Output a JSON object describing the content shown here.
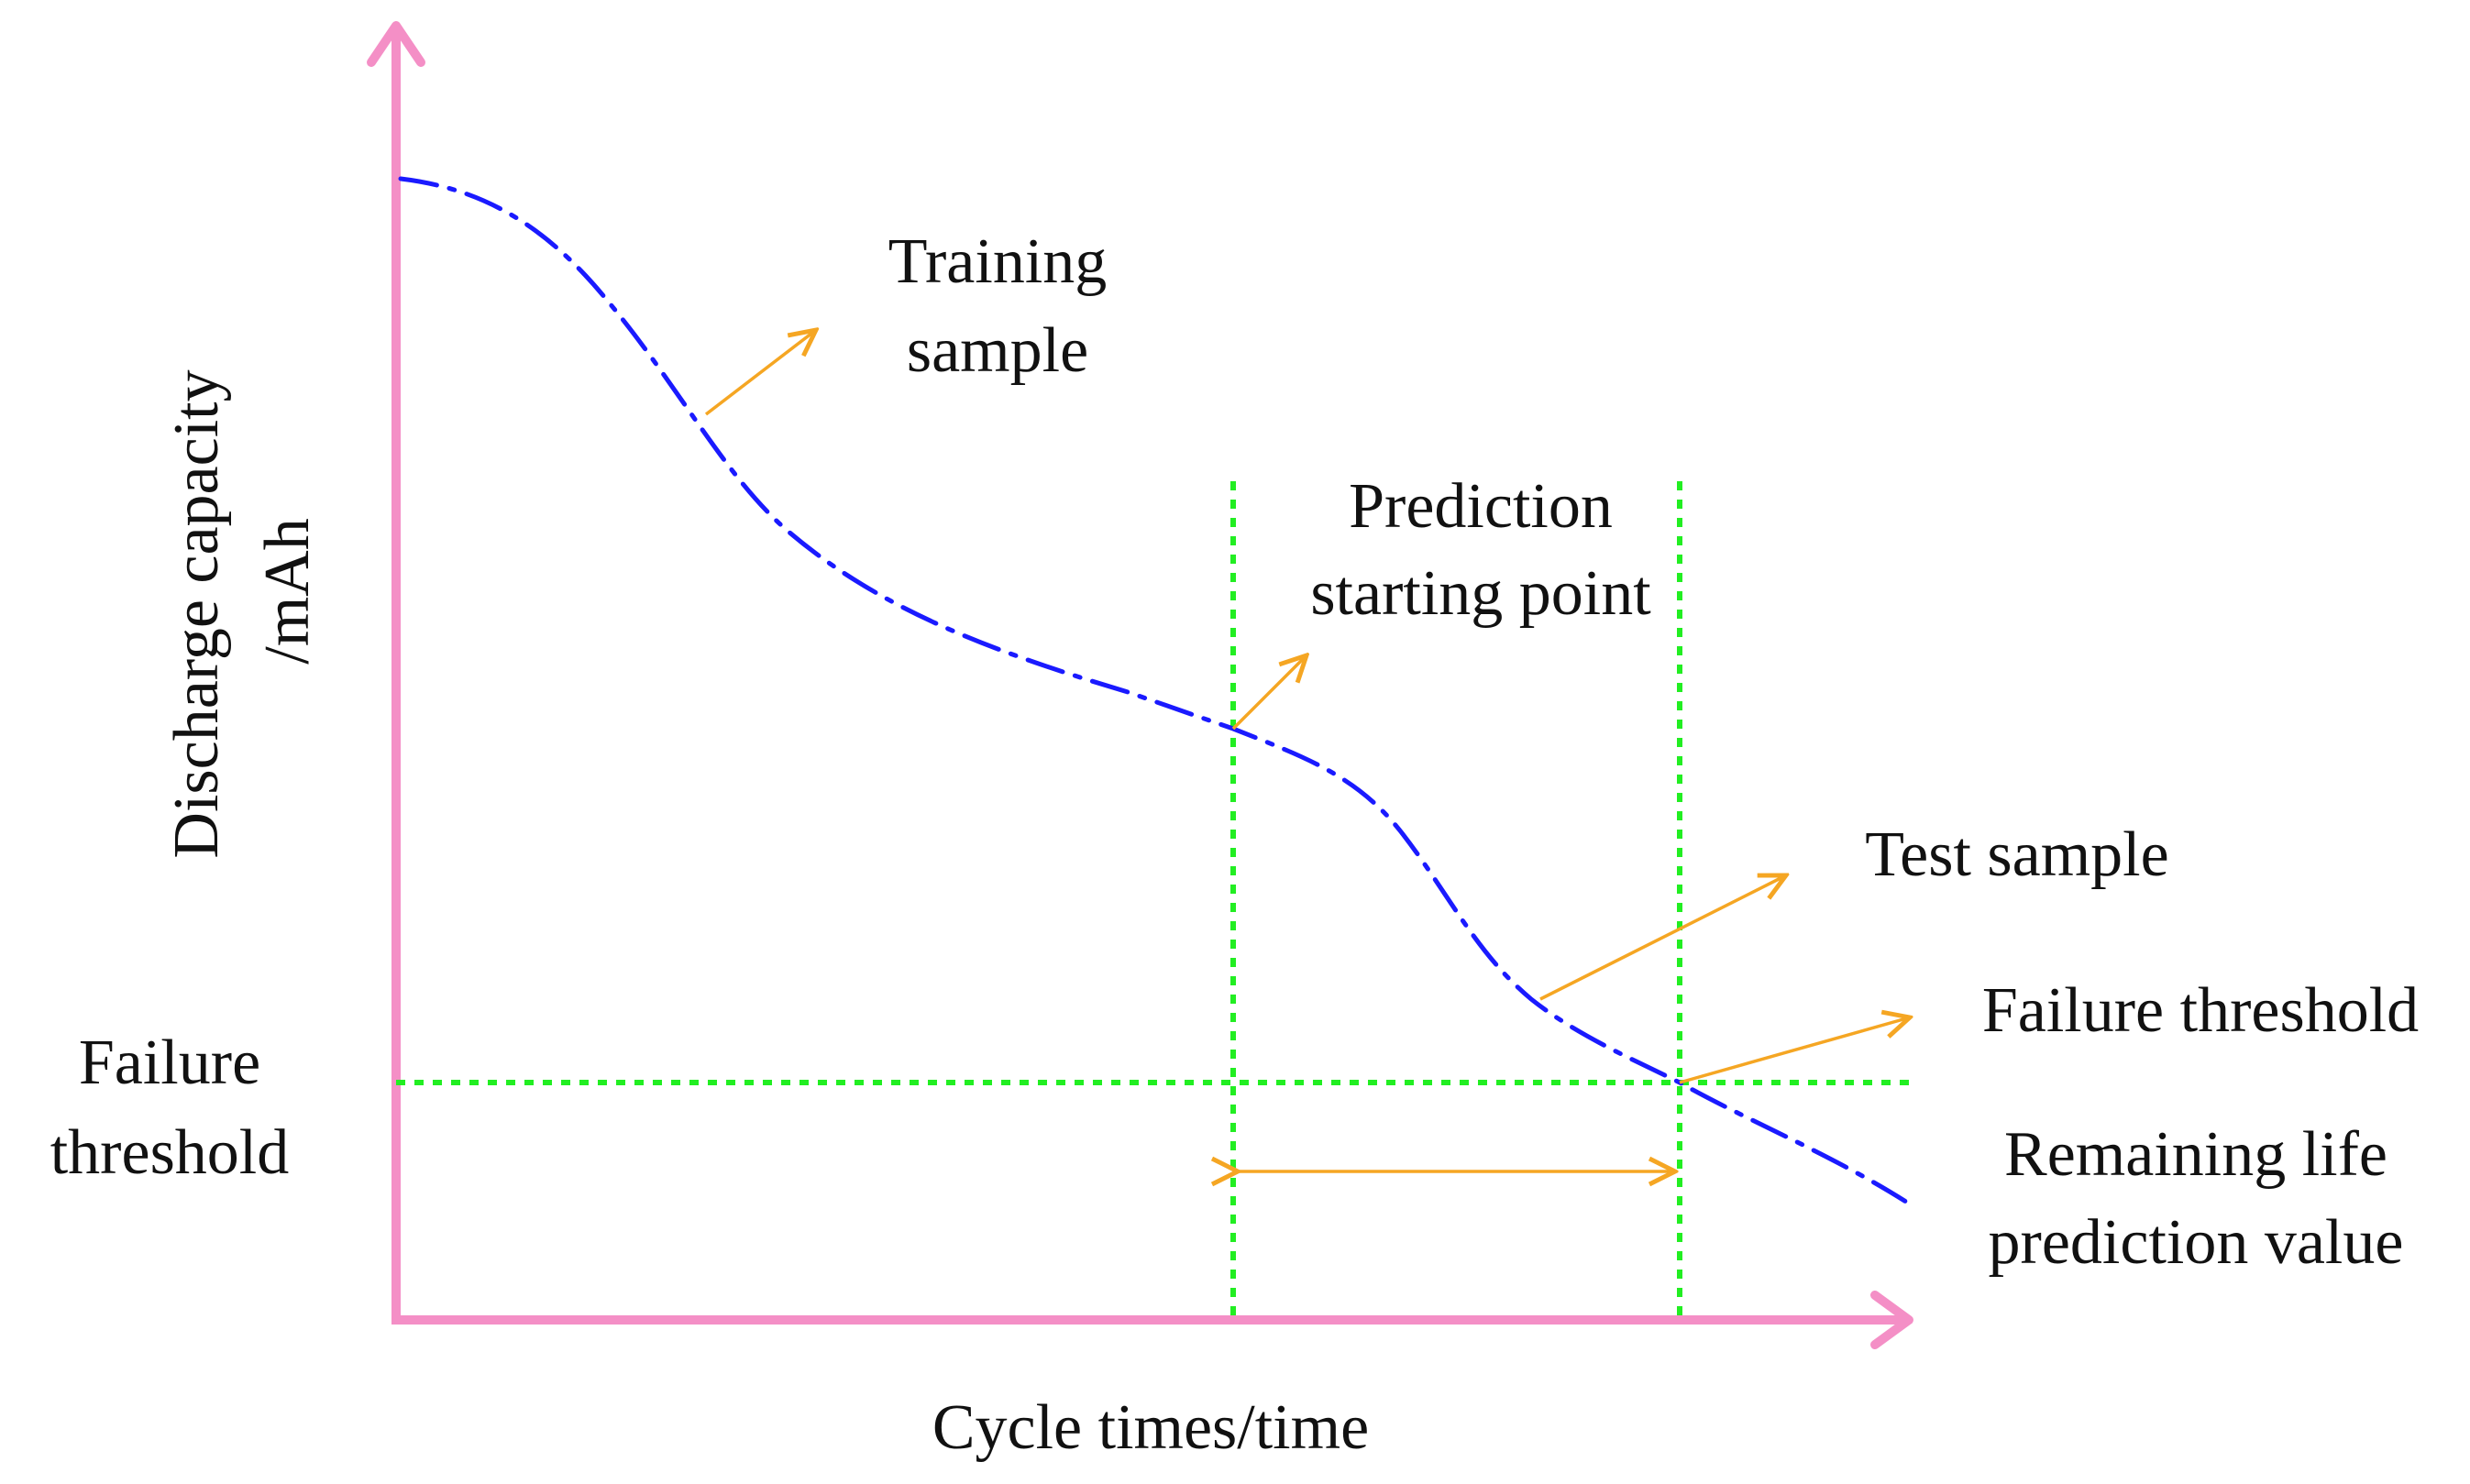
{
  "labels": {
    "y_axis_line1": "Discharge capacity",
    "y_axis_line2": "/mAh",
    "x_axis": "Cycle times/time",
    "training_line1": "Training",
    "training_line2": "sample",
    "prediction_line1": "Prediction",
    "prediction_line2": "starting point",
    "test_sample": "Test sample",
    "failure_threshold_right": "Failure threshold",
    "failure_threshold_left_line1": "Failure",
    "failure_threshold_left_line2": "threshold",
    "remaining_line1": "Remaining life",
    "remaining_line2": "prediction value"
  },
  "colors": {
    "axis": "#f48fc6",
    "curve": "#1a1aff",
    "guide": "#22ee22",
    "arrow": "#f5a623",
    "text": "#111111"
  }
}
